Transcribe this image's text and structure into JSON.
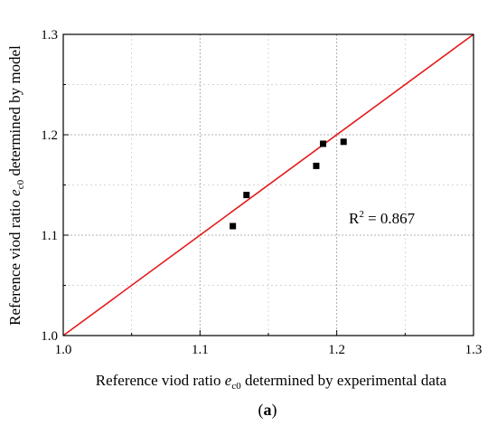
{
  "chart_data": {
    "type": "scatter",
    "xlabel": {
      "pre": "Reference viod ratio ",
      "var": "e",
      "sub": "c0",
      "post": " determined by experimental data"
    },
    "ylabel": {
      "pre": "Reference viod ratio ",
      "var": "e",
      "sub": "c0",
      "post": " determined by model"
    },
    "xlim": [
      1.0,
      1.3
    ],
    "ylim": [
      1.0,
      1.3
    ],
    "x_major_ticks": [
      1.0,
      1.1,
      1.2,
      1.3
    ],
    "y_major_ticks": [
      1.0,
      1.1,
      1.2,
      1.3
    ],
    "x_tick_labels": [
      "1.0",
      "1.1",
      "1.2",
      "1.3"
    ],
    "y_tick_labels": [
      "1.0",
      "1.1",
      "1.2",
      "1.3"
    ],
    "x_minor_ticks": [
      1.05,
      1.15,
      1.25
    ],
    "y_minor_ticks": [
      1.05,
      1.15,
      1.25
    ],
    "grid": true,
    "points": [
      {
        "x": 1.124,
        "y": 1.109
      },
      {
        "x": 1.134,
        "y": 1.14
      },
      {
        "x": 1.185,
        "y": 1.169
      },
      {
        "x": 1.19,
        "y": 1.191
      },
      {
        "x": 1.205,
        "y": 1.193
      }
    ],
    "reference_line": {
      "from": [
        1.0,
        1.0
      ],
      "to": [
        1.3,
        1.3
      ],
      "color": "#e31a1c"
    },
    "annotation": {
      "prefix": "R",
      "sup": "2",
      "suffix": " = 0.867"
    },
    "marker_color": "#000000"
  },
  "panel_label": {
    "open": "(",
    "letter": "a",
    "close": ")"
  }
}
